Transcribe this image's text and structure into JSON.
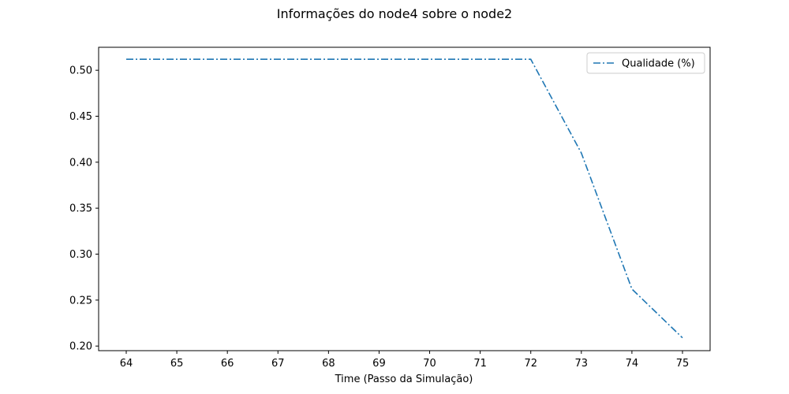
{
  "chart_data": {
    "type": "line",
    "title": "Informações do node4 sobre o node2",
    "xlabel": "Time (Passo da Simulação)",
    "ylabel": "",
    "x_categories": [
      "64",
      "65",
      "66",
      "67",
      "68",
      "69",
      "70",
      "71",
      "72",
      "73",
      "74",
      "75"
    ],
    "yticks": [
      "0.20",
      "0.25",
      "0.30",
      "0.35",
      "0.40",
      "0.45",
      "0.50"
    ],
    "ylim": [
      0.195,
      0.525
    ],
    "grid": false,
    "legend_position": "top-right",
    "series": [
      {
        "name": "Qualidade (%)",
        "color": "#1f77b4",
        "linestyle": "dashdot",
        "values": [
          0.512,
          0.512,
          0.512,
          0.512,
          0.512,
          0.512,
          0.512,
          0.512,
          0.512,
          0.41,
          0.262,
          0.209
        ]
      }
    ]
  }
}
